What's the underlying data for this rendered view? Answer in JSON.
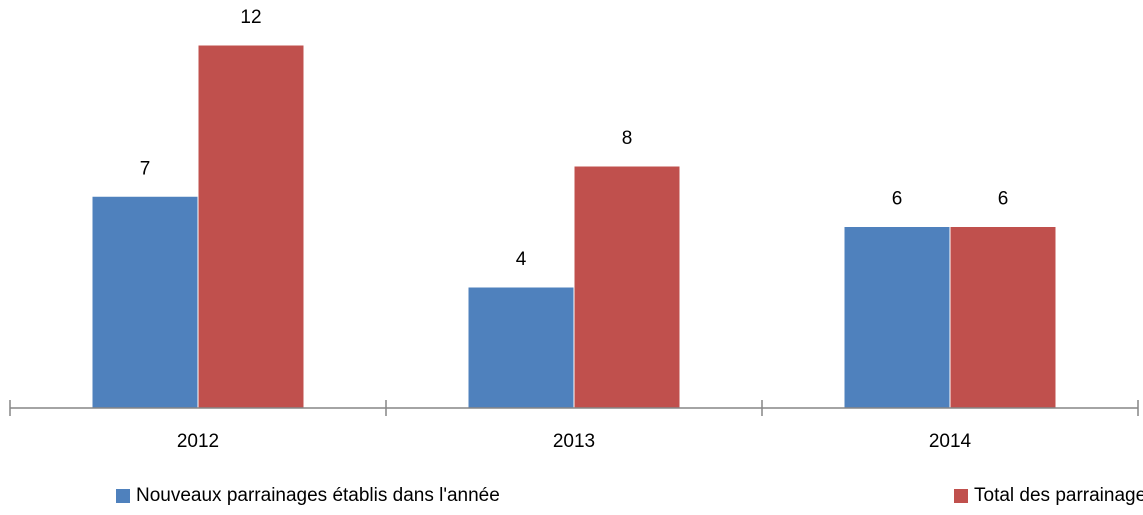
{
  "chart_data": {
    "type": "bar",
    "categories": [
      "2012",
      "2013",
      "2014"
    ],
    "series": [
      {
        "name": "Nouveaux parrainages établis dans l'année",
        "color": "#4f81bd",
        "values": [
          7,
          4,
          6
        ]
      },
      {
        "name": "Total des parrainages en cours",
        "color": "#c0504d",
        "values": [
          12,
          8,
          6
        ]
      }
    ]
  }
}
